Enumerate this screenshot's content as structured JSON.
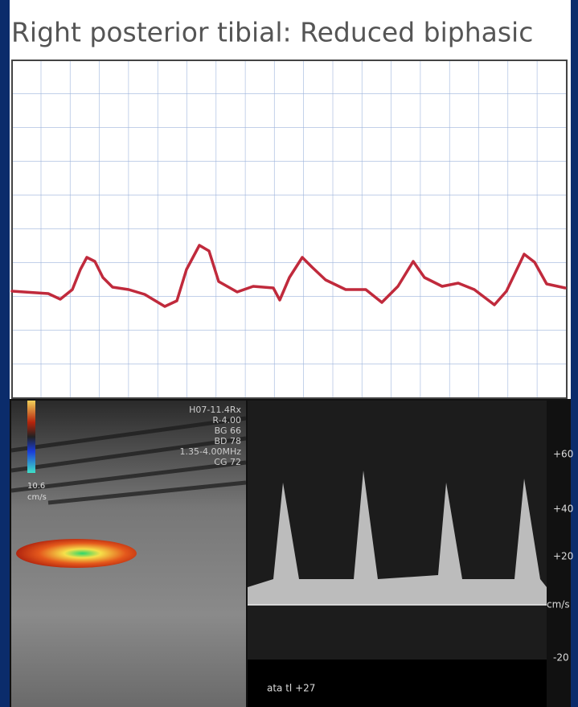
{
  "title": "Right posterior tibial: Reduced biphasic",
  "ultrasound": {
    "settings": [
      "H07-11.4Rx",
      "R-4.00",
      "BG 66",
      "BD 78",
      "1.35-4.00MHz",
      "CG 72"
    ],
    "color_scale": [
      "10.6",
      "cm/s"
    ],
    "velocity_scale": [
      "+60",
      "+40",
      "+20",
      "cm/s",
      "-20"
    ],
    "footer": "ata tl +27"
  }
}
